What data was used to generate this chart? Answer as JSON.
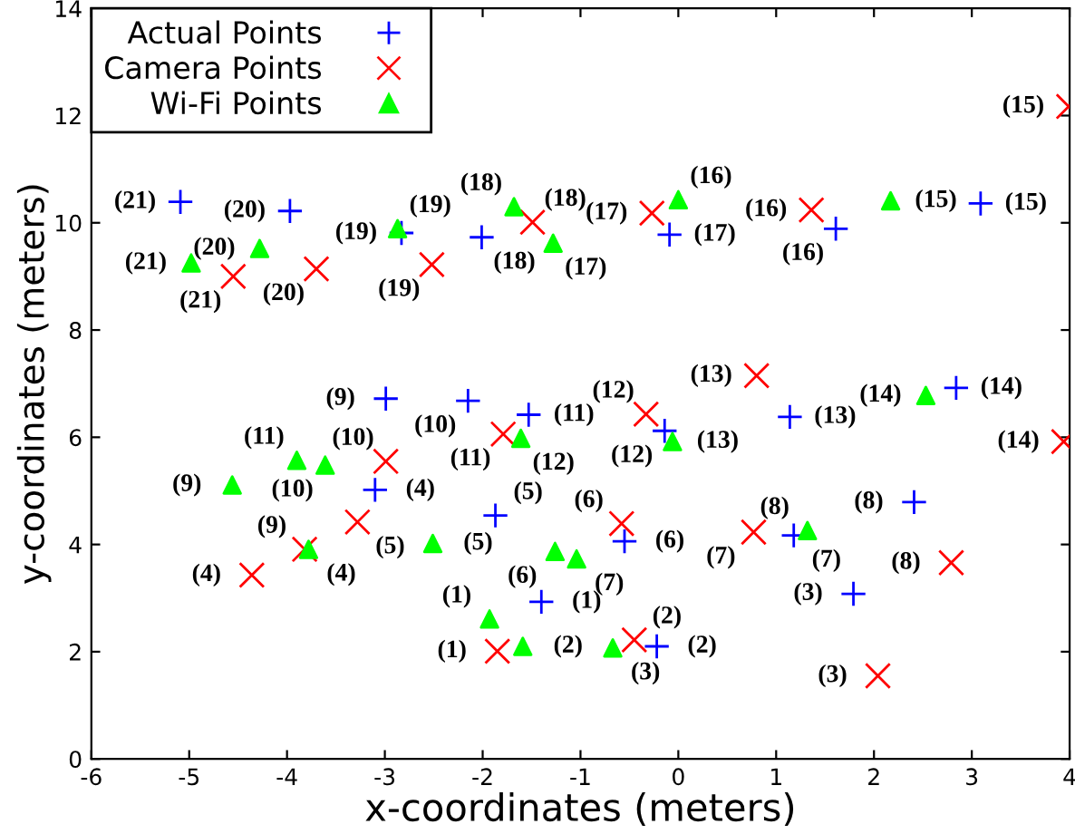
{
  "chart_data": {
    "type": "scatter",
    "xlabel": "x-coordinates (meters)",
    "ylabel": "y-coordinates (meters)",
    "xlim": [
      -6,
      4
    ],
    "ylim": [
      0,
      14
    ],
    "xticks": [
      -6,
      -5,
      -4,
      -3,
      -2,
      -1,
      0,
      1,
      2,
      3,
      4
    ],
    "yticks": [
      0,
      2,
      4,
      6,
      8,
      10,
      12,
      14
    ],
    "grid": false,
    "legend": "top left",
    "series": [
      {
        "name": "Actual Points",
        "color": "#0000ff",
        "marker": "plus",
        "x": [
          -1.4,
          -0.22,
          1.79,
          -3.1,
          -1.87,
          -0.55,
          1.18,
          2.41,
          -2.99,
          -2.15,
          -1.53,
          -0.14,
          1.14,
          2.84,
          3.09,
          1.61,
          -0.09,
          -2.01,
          -2.83,
          -3.97,
          -5.09
        ],
        "values": [
          2.93,
          2.1,
          3.08,
          5.02,
          4.54,
          4.06,
          4.17,
          4.79,
          6.72,
          6.68,
          6.42,
          6.12,
          6.38,
          6.92,
          10.36,
          9.89,
          9.78,
          9.73,
          9.81,
          10.22,
          10.39
        ]
      },
      {
        "name": "Camera Points",
        "color": "#ff0000",
        "marker": "cross",
        "x": [
          -1.85,
          -0.45,
          2.04,
          -4.36,
          -3.28,
          -0.58,
          0.77,
          2.79,
          -3.82,
          -2.99,
          -1.79,
          -0.33,
          0.8,
          3.94,
          3.99,
          1.36,
          -0.27,
          -1.49,
          -2.52,
          -3.7,
          -4.55
        ],
        "values": [
          2.01,
          2.22,
          1.55,
          3.43,
          4.42,
          4.39,
          4.23,
          3.66,
          3.91,
          5.55,
          6.06,
          6.43,
          7.15,
          5.92,
          12.17,
          10.24,
          10.18,
          10.01,
          9.22,
          9.14,
          9.0
        ]
      },
      {
        "name": "Wi-Fi Points",
        "color": "#00ff00",
        "marker": "triangle",
        "x": [
          -1.93,
          -1.59,
          -0.67,
          -3.78,
          -2.51,
          -1.26,
          -1.04,
          1.32,
          -4.56,
          -3.61,
          -3.9,
          -1.61,
          -0.06,
          2.53,
          2.17,
          0.0,
          -1.28,
          -1.68,
          -2.87,
          -4.28,
          -4.98
        ],
        "values": [
          2.61,
          2.1,
          2.07,
          3.91,
          4.02,
          3.87,
          3.73,
          4.26,
          5.11,
          5.48,
          5.57,
          5.98,
          5.92,
          6.78,
          10.41,
          10.43,
          9.62,
          10.3,
          9.89,
          9.52,
          9.25
        ]
      }
    ],
    "annotations": [
      {
        "text": "(1)",
        "x": -1.4,
        "y": 2.93
      },
      {
        "text": "(2)",
        "x": -0.22,
        "y": 2.1
      },
      {
        "text": "(3)",
        "x": 1.79,
        "y": 3.08
      },
      {
        "text": "(4)",
        "x": -3.1,
        "y": 5.02
      },
      {
        "text": "(5)",
        "x": -1.87,
        "y": 4.54
      },
      {
        "text": "(6)",
        "x": -0.55,
        "y": 4.06
      },
      {
        "text": "(7)",
        "x": 1.18,
        "y": 4.17
      },
      {
        "text": "(8)",
        "x": 2.41,
        "y": 4.79
      },
      {
        "text": "(9)",
        "x": -2.99,
        "y": 6.72
      },
      {
        "text": "(10)",
        "x": -2.15,
        "y": 6.68
      },
      {
        "text": "(11)",
        "x": -1.53,
        "y": 6.42
      },
      {
        "text": "(12)",
        "x": -0.14,
        "y": 6.12
      },
      {
        "text": "(13)",
        "x": 1.14,
        "y": 6.38
      },
      {
        "text": "(14)",
        "x": 2.84,
        "y": 6.92
      },
      {
        "text": "(15)",
        "x": 3.09,
        "y": 10.36
      },
      {
        "text": "(16)",
        "x": 1.61,
        "y": 9.89
      },
      {
        "text": "(17)",
        "x": -0.09,
        "y": 9.78
      },
      {
        "text": "(18)",
        "x": -2.01,
        "y": 9.73
      },
      {
        "text": "(19)",
        "x": -2.83,
        "y": 9.81
      },
      {
        "text": "(20)",
        "x": -3.97,
        "y": 10.22
      },
      {
        "text": "(21)",
        "x": -5.09,
        "y": 10.39
      },
      {
        "text": "(1)",
        "x": -1.85,
        "y": 2.01
      },
      {
        "text": "(2)",
        "x": -0.45,
        "y": 2.22
      },
      {
        "text": "(3)",
        "x": 2.04,
        "y": 1.55
      },
      {
        "text": "(4)",
        "x": -4.36,
        "y": 3.43
      },
      {
        "text": "(5)",
        "x": -3.28,
        "y": 4.42
      },
      {
        "text": "(6)",
        "x": -0.58,
        "y": 4.39
      },
      {
        "text": "(7)",
        "x": 0.77,
        "y": 4.23
      },
      {
        "text": "(8)",
        "x": 2.79,
        "y": 3.66
      },
      {
        "text": "(9)",
        "x": -3.82,
        "y": 3.91
      },
      {
        "text": "(10)",
        "x": -2.99,
        "y": 5.55
      },
      {
        "text": "(11)",
        "x": -1.79,
        "y": 6.06
      },
      {
        "text": "(12)",
        "x": -0.33,
        "y": 6.43
      },
      {
        "text": "(13)",
        "x": 0.8,
        "y": 7.15
      },
      {
        "text": "(14)",
        "x": 3.94,
        "y": 5.92
      },
      {
        "text": "(15)",
        "x": 3.99,
        "y": 12.17
      },
      {
        "text": "(16)",
        "x": 1.36,
        "y": 10.24
      },
      {
        "text": "(17)",
        "x": -0.27,
        "y": 10.18
      },
      {
        "text": "(18)",
        "x": -1.49,
        "y": 10.01
      },
      {
        "text": "(19)",
        "x": -2.52,
        "y": 9.22
      },
      {
        "text": "(20)",
        "x": -3.7,
        "y": 9.14
      },
      {
        "text": "(21)",
        "x": -4.55,
        "y": 9.0
      },
      {
        "text": "(1)",
        "x": -1.93,
        "y": 2.61
      },
      {
        "text": "(2)",
        "x": -1.59,
        "y": 2.1
      },
      {
        "text": "(3)",
        "x": -0.67,
        "y": 2.07
      },
      {
        "text": "(4)",
        "x": -3.78,
        "y": 3.91
      },
      {
        "text": "(5)",
        "x": -2.51,
        "y": 4.02
      },
      {
        "text": "(6)",
        "x": -1.26,
        "y": 3.87
      },
      {
        "text": "(7)",
        "x": -1.04,
        "y": 3.73
      },
      {
        "text": "(8)",
        "x": 1.32,
        "y": 4.26
      },
      {
        "text": "(9)",
        "x": -4.56,
        "y": 5.11
      },
      {
        "text": "(10)",
        "x": -3.61,
        "y": 5.48
      },
      {
        "text": "(11)",
        "x": -3.9,
        "y": 5.57
      },
      {
        "text": "(12)",
        "x": -1.61,
        "y": 5.98
      },
      {
        "text": "(13)",
        "x": -0.06,
        "y": 5.92
      },
      {
        "text": "(14)",
        "x": 2.53,
        "y": 6.78
      },
      {
        "text": "(15)",
        "x": 2.17,
        "y": 10.41
      },
      {
        "text": "(16)",
        "x": 0.0,
        "y": 10.43
      },
      {
        "text": "(17)",
        "x": -1.28,
        "y": 9.62
      },
      {
        "text": "(18)",
        "x": -1.68,
        "y": 10.3
      },
      {
        "text": "(19)",
        "x": -2.87,
        "y": 9.89
      },
      {
        "text": "(20)",
        "x": -4.28,
        "y": 9.52
      },
      {
        "text": "(21)",
        "x": -4.98,
        "y": 9.25
      }
    ]
  }
}
